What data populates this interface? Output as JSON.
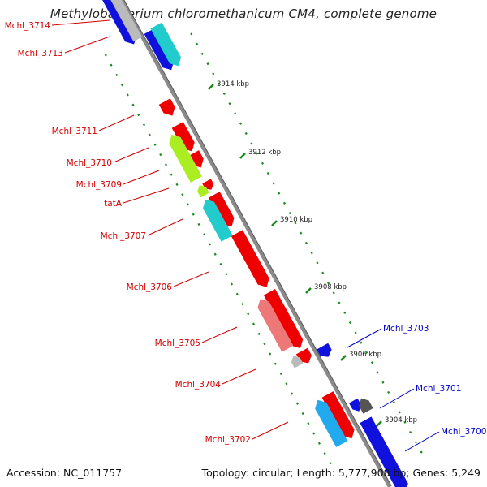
{
  "title": "Methylobacterium chloromethanicum CM4, complete genome",
  "accession": "Accession: NC_011757",
  "summary": "Topology: circular; Length: 5,777,908 bp; Genes: 5,249",
  "colors": {
    "backbone": "#8a8a8a",
    "left_label": "#d40000",
    "right_label": "#0000cc",
    "tick": "#1a8a1a",
    "gene_red": "#ee0000",
    "gene_cyan": "#22cccc",
    "gene_lightblue": "#22aaee",
    "gene_green": "#aaee22",
    "gene_pink": "#ee7777",
    "gene_blue": "#1111dd",
    "gene_gray": "#bbbbbb",
    "gene_darkgray": "#555555"
  },
  "scale_labels": [
    "3914 kbp",
    "3912 kbp",
    "3910 kbp",
    "3908 kbp",
    "3906 kbp",
    "3904 kbp"
  ],
  "left_genes": [
    {
      "label": "Mchl_3714"
    },
    {
      "label": "Mchl_3713"
    },
    {
      "label": "Mchl_3711"
    },
    {
      "label": "Mchl_3710"
    },
    {
      "label": "Mchl_3709"
    },
    {
      "label": "tatA"
    },
    {
      "label": "Mchl_3707"
    },
    {
      "label": "Mchl_3706"
    },
    {
      "label": "Mchl_3705"
    },
    {
      "label": "Mchl_3704"
    },
    {
      "label": "Mchl_3702"
    }
  ],
  "right_genes": [
    {
      "label": "Mchl_3703"
    },
    {
      "label": "Mchl_3701"
    },
    {
      "label": "Mchl_3700"
    }
  ]
}
